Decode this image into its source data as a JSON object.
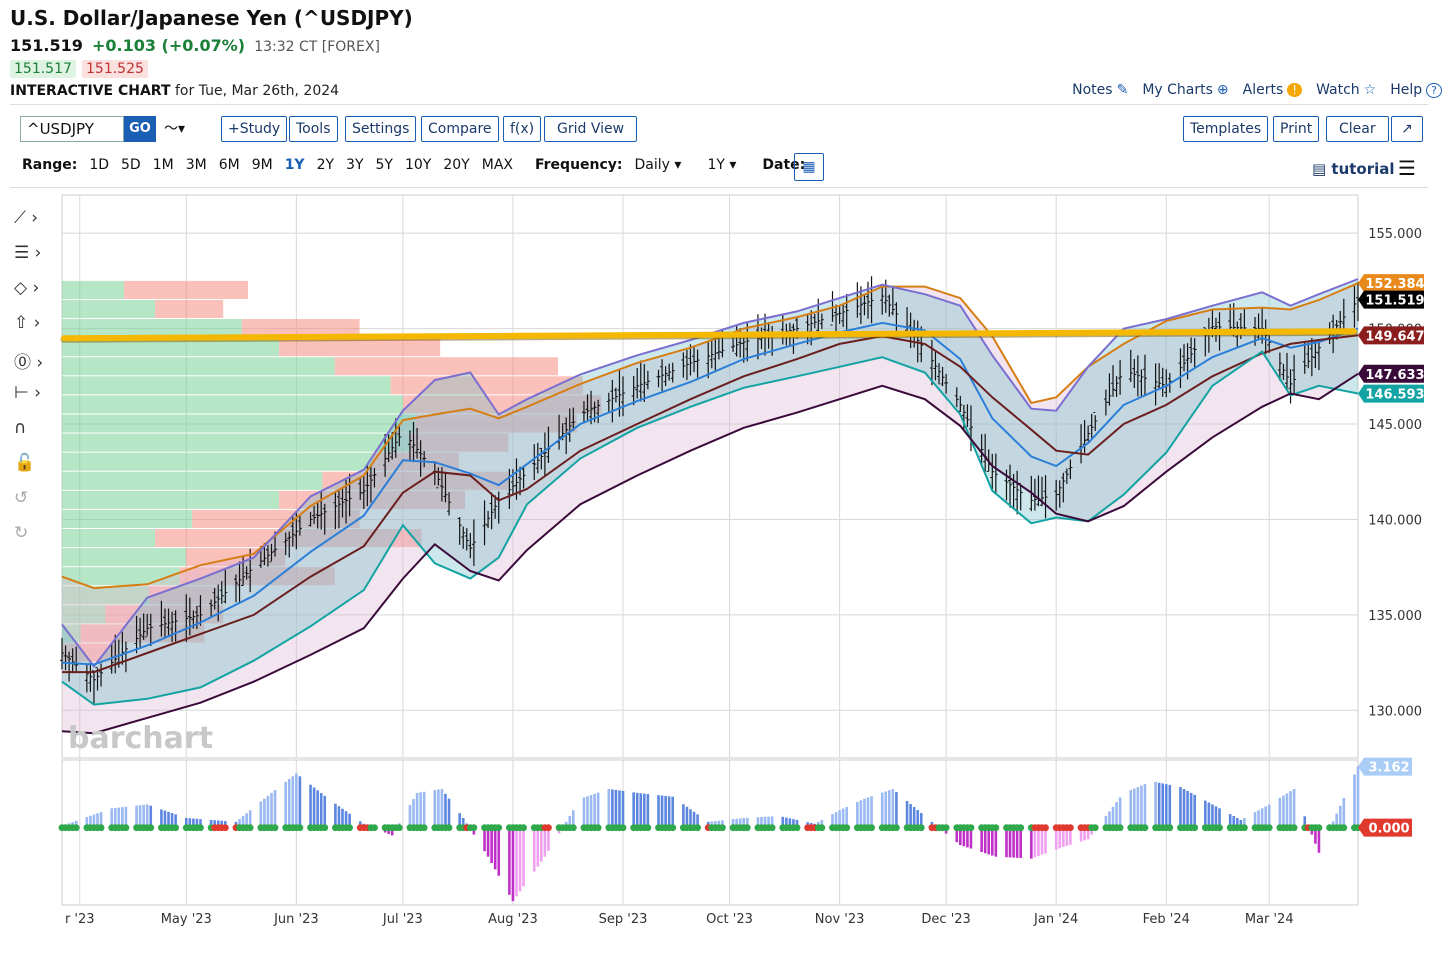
{
  "header": {
    "title": "U.S. Dollar/Japanese Yen (^USDJPY)",
    "last": "151.519",
    "change": "+0.103 (+0.07%)",
    "time": "13:32 CT [FOREX]",
    "bid": "151.517",
    "ask": "151.525",
    "chart_label": "INTERACTIVE CHART",
    "chart_date": "for Tue, Mar 26th, 2024"
  },
  "topnav": [
    {
      "label": "Notes",
      "icon": "edit-icon",
      "glyph": "✎"
    },
    {
      "label": "My Charts",
      "icon": "plus-circle-icon",
      "glyph": "⊕"
    },
    {
      "label": "Alerts",
      "icon": "alert-icon",
      "glyph": "!"
    },
    {
      "label": "Watch",
      "icon": "star-icon",
      "glyph": "☆"
    },
    {
      "label": "Help",
      "icon": "help-icon",
      "glyph": "?"
    }
  ],
  "toolbar": {
    "symbol": "^USDJPY",
    "go": "GO",
    "chart_type_glyph": "〜▾",
    "left_buttons": [
      "+Study",
      "Tools",
      "Settings",
      "Compare",
      "f(x)",
      "Grid View"
    ],
    "right_buttons": [
      "Templates",
      "Print",
      "Clear",
      "↗"
    ]
  },
  "range": {
    "label": "Range:",
    "options": [
      "1D",
      "5D",
      "1M",
      "3M",
      "6M",
      "9M",
      "1Y",
      "2Y",
      "3Y",
      "5Y",
      "10Y",
      "20Y",
      "MAX"
    ],
    "selected": "1Y",
    "frequency_label": "Frequency:",
    "frequency": "Daily ▾",
    "period": "1Y ▾",
    "date_label": "Date:",
    "calendar_glyph": "▦",
    "tutorial": "▤ tutorial",
    "menu_glyph": "☰"
  },
  "drawing_tools": [
    {
      "name": "trendline-tool-icon",
      "glyph": "⟋ ›"
    },
    {
      "name": "fibonacci-tool-icon",
      "glyph": "☰ ›"
    },
    {
      "name": "shapes-tool-icon",
      "glyph": "◇ ›"
    },
    {
      "name": "arrow-tool-icon",
      "glyph": "⇧ ›"
    },
    {
      "name": "annotation-tool-icon",
      "glyph": "⓪ ›"
    },
    {
      "name": "measure-tool-icon",
      "glyph": "⊢ ›"
    },
    {
      "name": "magnet-icon",
      "glyph": "∩"
    },
    {
      "name": "lock-icon",
      "glyph": "🔓"
    },
    {
      "name": "undo-icon",
      "glyph": "↺"
    },
    {
      "name": "redo-icon",
      "glyph": "↻"
    }
  ],
  "colors": {
    "grid": "#d8d8d8",
    "bar": "#111111",
    "kc_upper": "#d67e14",
    "bb_upper": "#7a6fd0",
    "bb_lower": "#13a3a3",
    "kc_lower": "#3a0a3a",
    "ma_blue": "#2b7fd8",
    "ma_brown": "#6b1e1e",
    "resistance": "#f5b800",
    "hist_pos": "#7aa8f0",
    "hist_neg": "#cc33cc",
    "dot_green": "#2ea84a",
    "dot_red": "#e03a2e"
  },
  "chart_data": {
    "type": "line",
    "title": "U.S. Dollar/Japanese Yen (^USDJPY)",
    "frequency": "Daily",
    "watermark": "barchart",
    "x_tick_labels": [
      "r '23",
      "May '23",
      "Jun '23",
      "Jul '23",
      "Aug '23",
      "Sep '23",
      "Oct '23",
      "Nov '23",
      "Dec '23",
      "Jan '24",
      "Feb '24",
      "Mar '24"
    ],
    "y_tick_labels": [
      "155.000",
      "150.000",
      "145.000",
      "140.000",
      "135.000",
      "130.000"
    ],
    "ylim": [
      127.5,
      157.0
    ],
    "x_range": [
      "2023-03-27",
      "2024-03-26"
    ],
    "resistance_level": 149.65,
    "price_labels": [
      {
        "value": "152.384",
        "bg": "#e8891c"
      },
      {
        "value": "151.519",
        "bg": "#000000"
      },
      {
        "value": "149.647",
        "bg": "#8b1d1d"
      },
      {
        "value": "147.633",
        "bg": "#3a0a3a"
      },
      {
        "value": "146.593",
        "bg": "#13a3a3"
      }
    ],
    "price_label_values": [
      152.384,
      151.519,
      149.647,
      147.633,
      146.593
    ],
    "series": [
      {
        "name": "",
        "role": "price",
        "x": [
          "2023-03-27",
          "2023-04-05",
          "2023-04-20",
          "2023-05-05",
          "2023-05-20",
          "2023-06-05",
          "2023-06-20",
          "2023-07-01",
          "2023-07-10",
          "2023-07-20",
          "2023-07-28",
          "2023-08-05",
          "2023-08-20",
          "2023-09-05",
          "2023-09-20",
          "2023-10-05",
          "2023-10-20",
          "2023-11-01",
          "2023-11-13",
          "2023-11-25",
          "2023-12-05",
          "2023-12-14",
          "2023-12-25",
          "2024-01-01",
          "2024-01-10",
          "2024-01-20",
          "2024-02-01",
          "2024-02-14",
          "2024-02-28",
          "2024-03-07",
          "2024-03-15",
          "2024-03-26"
        ],
        "values": [
          133.0,
          131.6,
          134.3,
          135.0,
          137.5,
          140.0,
          141.5,
          144.6,
          142.5,
          138.5,
          141.0,
          142.5,
          145.5,
          147.0,
          148.2,
          149.3,
          150.0,
          150.8,
          151.7,
          148.9,
          146.0,
          142.5,
          141.0,
          141.3,
          144.5,
          147.8,
          147.0,
          150.1,
          150.0,
          147.1,
          149.0,
          151.52
        ]
      },
      {
        "name": "",
        "role": "kc_upper",
        "x": [
          "2023-03-27",
          "2023-04-05",
          "2023-04-20",
          "2023-05-05",
          "2023-05-20",
          "2023-06-05",
          "2023-06-20",
          "2023-07-01",
          "2023-07-10",
          "2023-07-20",
          "2023-07-28",
          "2023-08-05",
          "2023-08-20",
          "2023-09-05",
          "2023-09-20",
          "2023-10-05",
          "2023-10-20",
          "2023-11-01",
          "2023-11-13",
          "2023-11-25",
          "2023-12-05",
          "2023-12-14",
          "2023-12-25",
          "2024-01-01",
          "2024-01-10",
          "2024-01-20",
          "2024-02-01",
          "2024-02-14",
          "2024-02-28",
          "2024-03-07",
          "2024-03-15",
          "2024-03-26"
        ],
        "values": [
          137.0,
          136.4,
          136.6,
          137.6,
          138.2,
          140.7,
          142.3,
          145.2,
          145.5,
          145.8,
          145.3,
          145.9,
          147.1,
          148.2,
          149.0,
          150.0,
          150.6,
          151.2,
          152.2,
          152.2,
          151.6,
          149.6,
          146.1,
          146.4,
          148.0,
          149.2,
          150.4,
          151.0,
          151.1,
          151.0,
          151.5,
          152.38
        ]
      },
      {
        "name": "",
        "role": "bb_upper",
        "x": [
          "2023-03-27",
          "2023-04-05",
          "2023-04-20",
          "2023-05-05",
          "2023-05-20",
          "2023-06-05",
          "2023-06-20",
          "2023-07-01",
          "2023-07-10",
          "2023-07-20",
          "2023-07-28",
          "2023-08-05",
          "2023-08-20",
          "2023-09-05",
          "2023-09-20",
          "2023-10-05",
          "2023-10-20",
          "2023-11-01",
          "2023-11-13",
          "2023-11-25",
          "2023-12-05",
          "2023-12-14",
          "2023-12-25",
          "2024-01-01",
          "2024-01-10",
          "2024-01-20",
          "2024-02-01",
          "2024-02-14",
          "2024-02-28",
          "2024-03-07",
          "2024-03-15",
          "2024-03-26"
        ],
        "values": [
          134.5,
          132.3,
          135.9,
          136.9,
          138.0,
          141.2,
          142.6,
          145.7,
          147.3,
          147.7,
          145.5,
          146.3,
          147.6,
          148.6,
          149.4,
          150.3,
          150.9,
          151.6,
          152.3,
          151.8,
          151.2,
          148.6,
          145.8,
          145.7,
          148.0,
          150.0,
          150.5,
          151.2,
          151.9,
          151.2,
          151.8,
          152.6
        ]
      },
      {
        "name": "",
        "role": "ma_blue",
        "x": [
          "2023-03-27",
          "2023-04-05",
          "2023-04-20",
          "2023-05-05",
          "2023-05-20",
          "2023-06-05",
          "2023-06-20",
          "2023-07-01",
          "2023-07-10",
          "2023-07-20",
          "2023-07-28",
          "2023-08-05",
          "2023-08-20",
          "2023-09-05",
          "2023-09-20",
          "2023-10-05",
          "2023-10-20",
          "2023-11-01",
          "2023-11-13",
          "2023-11-25",
          "2023-12-05",
          "2023-12-14",
          "2023-12-25",
          "2024-01-01",
          "2024-01-10",
          "2024-01-20",
          "2024-02-01",
          "2024-02-14",
          "2024-02-28",
          "2024-03-07",
          "2024-03-15",
          "2024-03-26"
        ],
        "values": [
          132.5,
          132.4,
          133.4,
          134.6,
          136.0,
          138.3,
          140.2,
          143.1,
          143.0,
          142.4,
          141.8,
          142.9,
          145.0,
          146.2,
          147.2,
          148.4,
          149.2,
          149.8,
          150.3,
          149.9,
          148.4,
          145.3,
          143.3,
          142.8,
          144.0,
          146.0,
          147.0,
          148.5,
          149.5,
          149.0,
          149.3,
          150.0
        ]
      },
      {
        "name": "",
        "role": "ma_brown",
        "x": [
          "2023-03-27",
          "2023-04-05",
          "2023-04-20",
          "2023-05-05",
          "2023-05-20",
          "2023-06-05",
          "2023-06-20",
          "2023-07-01",
          "2023-07-10",
          "2023-07-20",
          "2023-07-28",
          "2023-08-05",
          "2023-08-20",
          "2023-09-05",
          "2023-09-20",
          "2023-10-05",
          "2023-10-20",
          "2023-11-01",
          "2023-11-13",
          "2023-11-25",
          "2023-12-05",
          "2023-12-14",
          "2023-12-25",
          "2024-01-01",
          "2024-01-10",
          "2024-01-20",
          "2024-02-01",
          "2024-02-14",
          "2024-02-28",
          "2024-03-07",
          "2024-03-15",
          "2024-03-26"
        ],
        "values": [
          132.0,
          132.0,
          133.0,
          134.0,
          135.0,
          137.0,
          138.6,
          141.4,
          142.5,
          142.3,
          141.0,
          141.6,
          143.6,
          145.0,
          146.3,
          147.5,
          148.4,
          149.2,
          149.6,
          149.2,
          148.0,
          146.4,
          144.7,
          143.6,
          143.4,
          145.0,
          146.0,
          147.5,
          148.7,
          149.2,
          149.4,
          149.65
        ]
      },
      {
        "name": "",
        "role": "bb_lower",
        "x": [
          "2023-03-27",
          "2023-04-05",
          "2023-04-20",
          "2023-05-05",
          "2023-05-20",
          "2023-06-05",
          "2023-06-20",
          "2023-07-01",
          "2023-07-10",
          "2023-07-20",
          "2023-07-28",
          "2023-08-05",
          "2023-08-20",
          "2023-09-05",
          "2023-09-20",
          "2023-10-05",
          "2023-10-20",
          "2023-11-01",
          "2023-11-13",
          "2023-11-25",
          "2023-12-05",
          "2023-12-14",
          "2023-12-25",
          "2024-01-01",
          "2024-01-10",
          "2024-01-20",
          "2024-02-01",
          "2024-02-14",
          "2024-02-28",
          "2024-03-07",
          "2024-03-15",
          "2024-03-26"
        ],
        "values": [
          131.5,
          130.3,
          130.6,
          131.2,
          132.6,
          134.4,
          136.3,
          139.7,
          137.7,
          136.9,
          138.0,
          140.8,
          143.2,
          144.8,
          145.9,
          146.9,
          147.5,
          148.0,
          148.5,
          147.7,
          145.5,
          141.5,
          139.8,
          140.1,
          139.9,
          141.3,
          143.5,
          147.0,
          148.8,
          146.5,
          147.0,
          146.6
        ]
      },
      {
        "name": "",
        "role": "kc_lower",
        "x": [
          "2023-03-27",
          "2023-04-05",
          "2023-04-20",
          "2023-05-05",
          "2023-05-20",
          "2023-06-05",
          "2023-06-20",
          "2023-07-01",
          "2023-07-10",
          "2023-07-20",
          "2023-07-28",
          "2023-08-05",
          "2023-08-20",
          "2023-09-05",
          "2023-09-20",
          "2023-10-05",
          "2023-10-20",
          "2023-11-01",
          "2023-11-13",
          "2023-11-25",
          "2023-12-05",
          "2023-12-14",
          "2023-12-25",
          "2024-01-01",
          "2024-01-10",
          "2024-01-20",
          "2024-02-01",
          "2024-02-14",
          "2024-02-28",
          "2024-03-07",
          "2024-03-15",
          "2024-03-26"
        ],
        "values": [
          128.9,
          128.8,
          129.6,
          130.4,
          131.5,
          132.9,
          134.3,
          136.9,
          138.7,
          137.3,
          136.8,
          138.4,
          140.8,
          142.3,
          143.6,
          144.8,
          145.6,
          146.3,
          147.0,
          146.3,
          144.9,
          142.8,
          141.4,
          140.3,
          139.9,
          140.7,
          142.5,
          144.3,
          145.9,
          146.6,
          146.3,
          147.63
        ]
      }
    ],
    "volume_profile": {
      "price_levels": [
        153.0,
        152.0,
        151.0,
        150.0,
        149.0,
        148.0,
        147.0,
        146.0,
        145.0,
        144.0,
        143.0,
        142.0,
        141.0,
        140.0,
        139.0,
        138.0,
        137.0,
        136.0,
        135.0,
        134.0,
        133.0,
        132.0,
        131.0
      ],
      "up_volume": [
        0,
        10,
        15,
        29,
        35,
        44,
        53,
        55,
        57,
        56,
        50,
        42,
        35,
        21,
        15,
        20,
        19,
        14,
        7,
        3,
        0,
        0,
        0
      ],
      "down_volume": [
        0,
        20,
        11,
        19,
        26,
        36,
        31,
        32,
        26,
        16,
        14,
        30,
        30,
        27,
        43,
        16,
        25,
        11,
        19,
        20,
        9,
        0,
        0
      ]
    },
    "oscillator": {
      "ylim": [
        -4.0,
        3.5
      ],
      "label": "3.162",
      "zero_label": "0.000",
      "x": [
        "2023-03-27",
        "2023-04-10",
        "2023-04-20",
        "2023-05-01",
        "2023-05-15",
        "2023-05-25",
        "2023-06-01",
        "2023-06-10",
        "2023-06-20",
        "2023-06-28",
        "2023-07-05",
        "2023-07-12",
        "2023-07-18",
        "2023-07-25",
        "2023-08-01",
        "2023-08-10",
        "2023-08-20",
        "2023-08-28",
        "2023-09-05",
        "2023-09-15",
        "2023-09-25",
        "2023-10-05",
        "2023-10-15",
        "2023-10-25",
        "2023-11-01",
        "2023-11-08",
        "2023-11-16",
        "2023-11-25",
        "2023-12-05",
        "2023-12-15",
        "2023-12-25",
        "2024-01-03",
        "2024-01-10",
        "2024-01-20",
        "2024-01-28",
        "2024-02-05",
        "2024-02-13",
        "2024-02-22",
        "2024-03-01",
        "2024-03-08",
        "2024-03-15",
        "2024-03-26"
      ],
      "values": [
        0.1,
        1.0,
        1.2,
        0.5,
        0.3,
        1.8,
        2.8,
        1.5,
        0.2,
        -0.4,
        1.8,
        2.0,
        0.5,
        -1.5,
        -3.8,
        -1.5,
        1.5,
        2.0,
        1.8,
        1.6,
        0.3,
        0.5,
        0.6,
        0.2,
        0.9,
        1.5,
        2.0,
        0.6,
        -0.9,
        -1.5,
        -1.6,
        -1.0,
        -0.6,
        1.8,
        2.4,
        2.1,
        1.3,
        0.4,
        1.2,
        2.0,
        -1.3,
        3.16
      ]
    }
  }
}
